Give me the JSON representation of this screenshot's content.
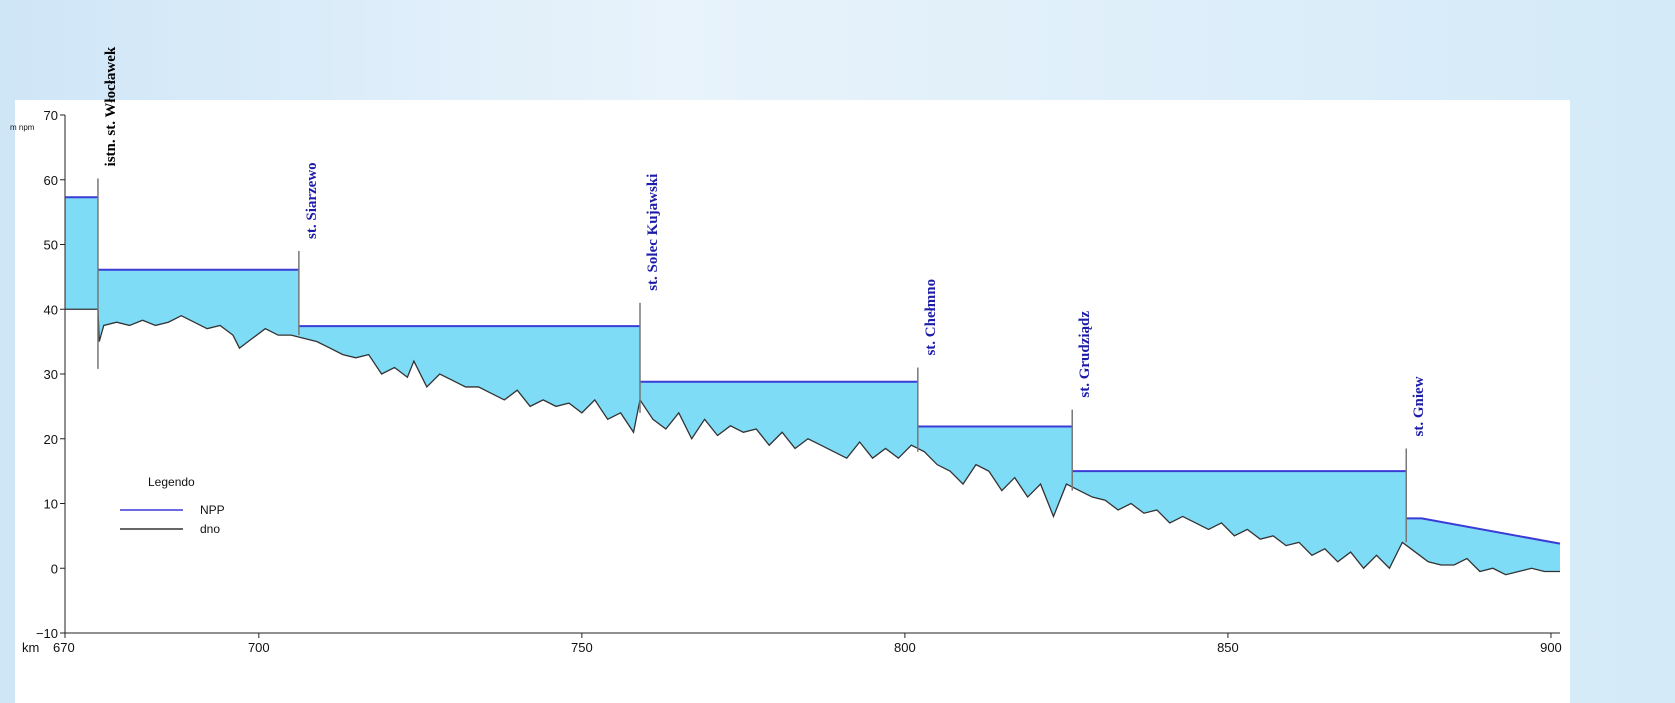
{
  "chart_data": {
    "type": "line",
    "x_label": "km",
    "y_label": "m npm",
    "xlim": [
      670,
      901.4
    ],
    "ylim": [
      -10,
      70
    ],
    "xticks": [
      670,
      700,
      750,
      800,
      850,
      900
    ],
    "yticks": [
      {
        "value": -10,
        "label": "−10"
      },
      0,
      10,
      20,
      30,
      40,
      50,
      60,
      70
    ],
    "legend_title": "Legendo",
    "legend": "lower left",
    "fill_color": "#7fdcf7",
    "series": [
      {
        "name": "NPP",
        "color": "#3b3bd6",
        "x": [
          670,
          675.1,
          null,
          675.1,
          706.2,
          null,
          706.2,
          759.0,
          null,
          759.0,
          802.0,
          null,
          802.0,
          825.9,
          null,
          825.9,
          877.6,
          null,
          877.6,
          880,
          901.4
        ],
        "values": [
          57.3,
          57.3,
          null,
          46.1,
          46.1,
          null,
          37.4,
          37.4,
          null,
          28.8,
          28.8,
          null,
          21.9,
          21.9,
          null,
          15.0,
          15.0,
          null,
          7.7,
          7.7,
          3.8
        ]
      },
      {
        "name": "dno",
        "color": "#333333",
        "x": [
          670,
          675.1,
          675.3,
          676,
          678,
          680,
          682,
          684,
          686,
          688,
          690,
          692,
          694,
          696,
          697,
          699,
          701,
          703,
          705,
          707,
          709,
          711,
          713,
          715,
          717,
          719,
          721,
          723,
          724,
          726,
          728,
          730,
          732,
          734,
          736,
          738,
          740,
          742,
          744,
          746,
          748,
          750,
          752,
          754,
          756,
          758,
          759,
          761,
          763,
          765,
          767,
          769,
          771,
          773,
          775,
          777,
          779,
          781,
          783,
          785,
          787,
          789,
          791,
          793,
          795,
          797,
          799,
          801,
          803,
          805,
          807,
          809,
          811,
          813,
          815,
          817,
          819,
          821,
          823,
          825,
          827,
          829,
          831,
          833,
          835,
          837,
          839,
          841,
          843,
          845,
          847,
          849,
          851,
          853,
          855,
          857,
          859,
          861,
          863,
          865,
          867,
          869,
          871,
          873,
          875,
          877,
          879,
          881,
          883,
          885,
          887,
          889,
          891,
          893,
          895,
          897,
          899,
          901.4
        ],
        "values": [
          40,
          40,
          35,
          37.5,
          38,
          37.5,
          38.3,
          37.5,
          38,
          39,
          38,
          37,
          37.5,
          36,
          34,
          35.5,
          37,
          36,
          36,
          35.5,
          35,
          34,
          33,
          32.5,
          33,
          30,
          31,
          29.5,
          32,
          28,
          30,
          29,
          28,
          28,
          27,
          26,
          27.5,
          25,
          26,
          25,
          25.5,
          24,
          26,
          23,
          24,
          21,
          26,
          23,
          21.5,
          24,
          20,
          23,
          20.5,
          22,
          21,
          21.5,
          19,
          21,
          18.5,
          20,
          19,
          18,
          17,
          19.5,
          17,
          18.5,
          17,
          19,
          18,
          16,
          15,
          13,
          16,
          15,
          12,
          14,
          11,
          13,
          8,
          13,
          12,
          11,
          10.5,
          9,
          10,
          8.5,
          9,
          7,
          8,
          7,
          6,
          7,
          5,
          6,
          4.5,
          5,
          3.5,
          4,
          2,
          3,
          1,
          2.5,
          0,
          2,
          0,
          4,
          2.5,
          1,
          0.5,
          0.5,
          1.5,
          -0.5,
          0,
          -1,
          -0.5,
          0,
          -0.5,
          -0.5
        ]
      }
    ],
    "dams": [
      {
        "label": "istn. st. Włocławek",
        "color": "#000000",
        "x": 675.1,
        "top": 60.2,
        "bottom": 30.8
      },
      {
        "label": "st. Siarzewo",
        "color": "#1c1ca8",
        "x": 706.2,
        "top": 49,
        "bottom": 36
      },
      {
        "label": "st. Solec Kujawski",
        "color": "#1c1ca8",
        "x": 759.0,
        "top": 41,
        "bottom": 24
      },
      {
        "label": "st. Chełmno",
        "color": "#1c1ca8",
        "x": 802.0,
        "top": 31,
        "bottom": 18
      },
      {
        "label": "st. Grudziądz",
        "color": "#1c1ca8",
        "x": 825.9,
        "top": 24.5,
        "bottom": 12
      },
      {
        "label": "st. Gniew",
        "color": "#1c1ca8",
        "x": 877.6,
        "top": 18.5,
        "bottom": 4
      }
    ]
  }
}
